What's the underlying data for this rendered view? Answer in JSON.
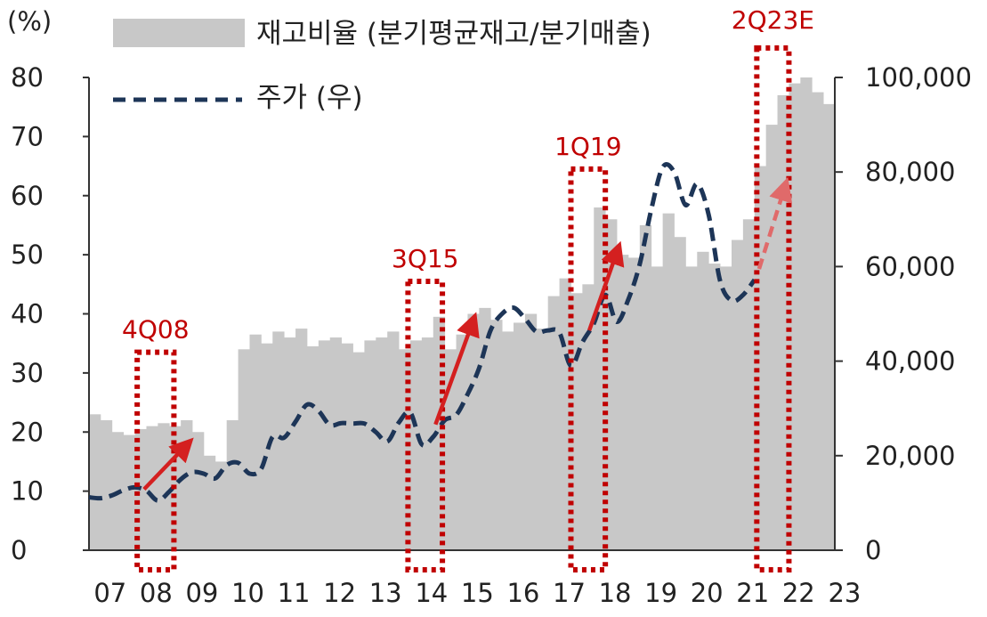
{
  "chart_data": {
    "type": "bar+line",
    "y_left_unit": "(%)",
    "y_left_ticks": [
      "0",
      "10",
      "20",
      "30",
      "40",
      "50",
      "60",
      "70",
      "80"
    ],
    "y_left_range": [
      0,
      80
    ],
    "y_right_ticks": [
      "0",
      "20,000",
      "40,000",
      "60,000",
      "80,000",
      "100,000"
    ],
    "y_right_range": [
      0,
      100000
    ],
    "x_tick_labels": [
      "07",
      "08",
      "09",
      "10",
      "11",
      "12",
      "13",
      "14",
      "15",
      "16",
      "17",
      "18",
      "19",
      "20",
      "21",
      "22",
      "23"
    ],
    "series": [
      {
        "name": "재고비율 (분기평균재고/분기매출)",
        "type": "bar",
        "axis": "left",
        "color": "#c8c8c8",
        "values": [
          23,
          22,
          20,
          19.5,
          20.5,
          21,
          21.5,
          21,
          22,
          20,
          16,
          15,
          22,
          34,
          36.5,
          35,
          37,
          36,
          37.5,
          34.5,
          35.5,
          36,
          35,
          33.5,
          35.5,
          36,
          37,
          34,
          35.5,
          36,
          39.5,
          34,
          36.5,
          40,
          41,
          39,
          37,
          38.5,
          40,
          37.5,
          43,
          46,
          43.5,
          45,
          58,
          56,
          50,
          49.5,
          55,
          48,
          57,
          53,
          48,
          50.5,
          48.5,
          48,
          52.5,
          56,
          65,
          72,
          77,
          79,
          80,
          77.5,
          75.5
        ]
      },
      {
        "name": "주가 (우)",
        "type": "line",
        "axis": "right",
        "color": "#1d3557",
        "points": [
          {
            "t": 0,
            "v": 11200
          },
          {
            "t": 0.25,
            "v": 11000
          },
          {
            "t": 0.5,
            "v": 11600
          },
          {
            "t": 0.75,
            "v": 12700
          },
          {
            "t": 1.0,
            "v": 13300
          },
          {
            "t": 1.25,
            "v": 12600
          },
          {
            "t": 1.5,
            "v": 10500
          },
          {
            "t": 1.75,
            "v": 12400
          },
          {
            "t": 2.0,
            "v": 15000
          },
          {
            "t": 2.25,
            "v": 16500
          },
          {
            "t": 2.5,
            "v": 16200
          },
          {
            "t": 2.75,
            "v": 15200
          },
          {
            "t": 3.0,
            "v": 18000
          },
          {
            "t": 3.25,
            "v": 18500
          },
          {
            "t": 3.5,
            "v": 16200
          },
          {
            "t": 3.75,
            "v": 17200
          },
          {
            "t": 4.0,
            "v": 24000
          },
          {
            "t": 4.25,
            "v": 23800
          },
          {
            "t": 4.5,
            "v": 27200
          },
          {
            "t": 4.75,
            "v": 30800
          },
          {
            "t": 5.0,
            "v": 29500
          },
          {
            "t": 5.25,
            "v": 26500
          },
          {
            "t": 5.5,
            "v": 26900
          },
          {
            "t": 5.75,
            "v": 26800
          },
          {
            "t": 6.0,
            "v": 26800
          },
          {
            "t": 6.25,
            "v": 25000
          },
          {
            "t": 6.5,
            "v": 23000
          },
          {
            "t": 6.75,
            "v": 27000
          },
          {
            "t": 7.0,
            "v": 29100
          },
          {
            "t": 7.25,
            "v": 22400
          },
          {
            "t": 7.5,
            "v": 24000
          },
          {
            "t": 7.75,
            "v": 27500
          },
          {
            "t": 8.0,
            "v": 28600
          },
          {
            "t": 8.25,
            "v": 33000
          },
          {
            "t": 8.5,
            "v": 38500
          },
          {
            "t": 8.75,
            "v": 46500
          },
          {
            "t": 9.0,
            "v": 50000
          },
          {
            "t": 9.25,
            "v": 51300
          },
          {
            "t": 9.5,
            "v": 49000
          },
          {
            "t": 9.75,
            "v": 46200
          },
          {
            "t": 10.0,
            "v": 46500
          },
          {
            "t": 10.25,
            "v": 46000
          },
          {
            "t": 10.5,
            "v": 39000
          },
          {
            "t": 10.75,
            "v": 44000
          },
          {
            "t": 11.0,
            "v": 48000
          },
          {
            "t": 11.25,
            "v": 54000
          },
          {
            "t": 11.5,
            "v": 48300
          },
          {
            "t": 11.75,
            "v": 53000
          },
          {
            "t": 12.0,
            "v": 60500
          },
          {
            "t": 12.25,
            "v": 72000
          },
          {
            "t": 12.5,
            "v": 81000
          },
          {
            "t": 12.75,
            "v": 80000
          },
          {
            "t": 13.0,
            "v": 73000
          },
          {
            "t": 13.25,
            "v": 77500
          },
          {
            "t": 13.5,
            "v": 71000
          },
          {
            "t": 13.75,
            "v": 57000
          },
          {
            "t": 14.0,
            "v": 52800
          },
          {
            "t": 14.25,
            "v": 54000
          },
          {
            "t": 14.5,
            "v": 57200
          }
        ]
      }
    ],
    "annotations": [
      {
        "label": "4Q08",
        "arrow_from": [
          1.2,
          12900
        ],
        "arrow_to": [
          2.1,
          22000
        ],
        "box": {
          "from": 1.05,
          "to": 1.85,
          "top": 33.5
        }
      },
      {
        "label": "3Q15",
        "arrow_from": [
          7.55,
          26600
        ],
        "arrow_to": [
          8.35,
          48000
        ],
        "box": {
          "from": 6.95,
          "to": 7.7,
          "top": 45.5
        }
      },
      {
        "label": "1Q19",
        "arrow_from": [
          10.9,
          46500
        ],
        "arrow_to": [
          11.5,
          63000
        ],
        "box": {
          "from": 10.5,
          "to": 11.25,
          "top": 64.5
        }
      },
      {
        "label": "2Q23E",
        "arrow_from": [
          14.6,
          59500
        ],
        "arrow_to": [
          15.15,
          76500
        ],
        "box": {
          "from": 14.55,
          "to": 15.25,
          "top": 85
        },
        "dashed": true
      }
    ],
    "legend_placement": "top-left",
    "grid": false
  }
}
